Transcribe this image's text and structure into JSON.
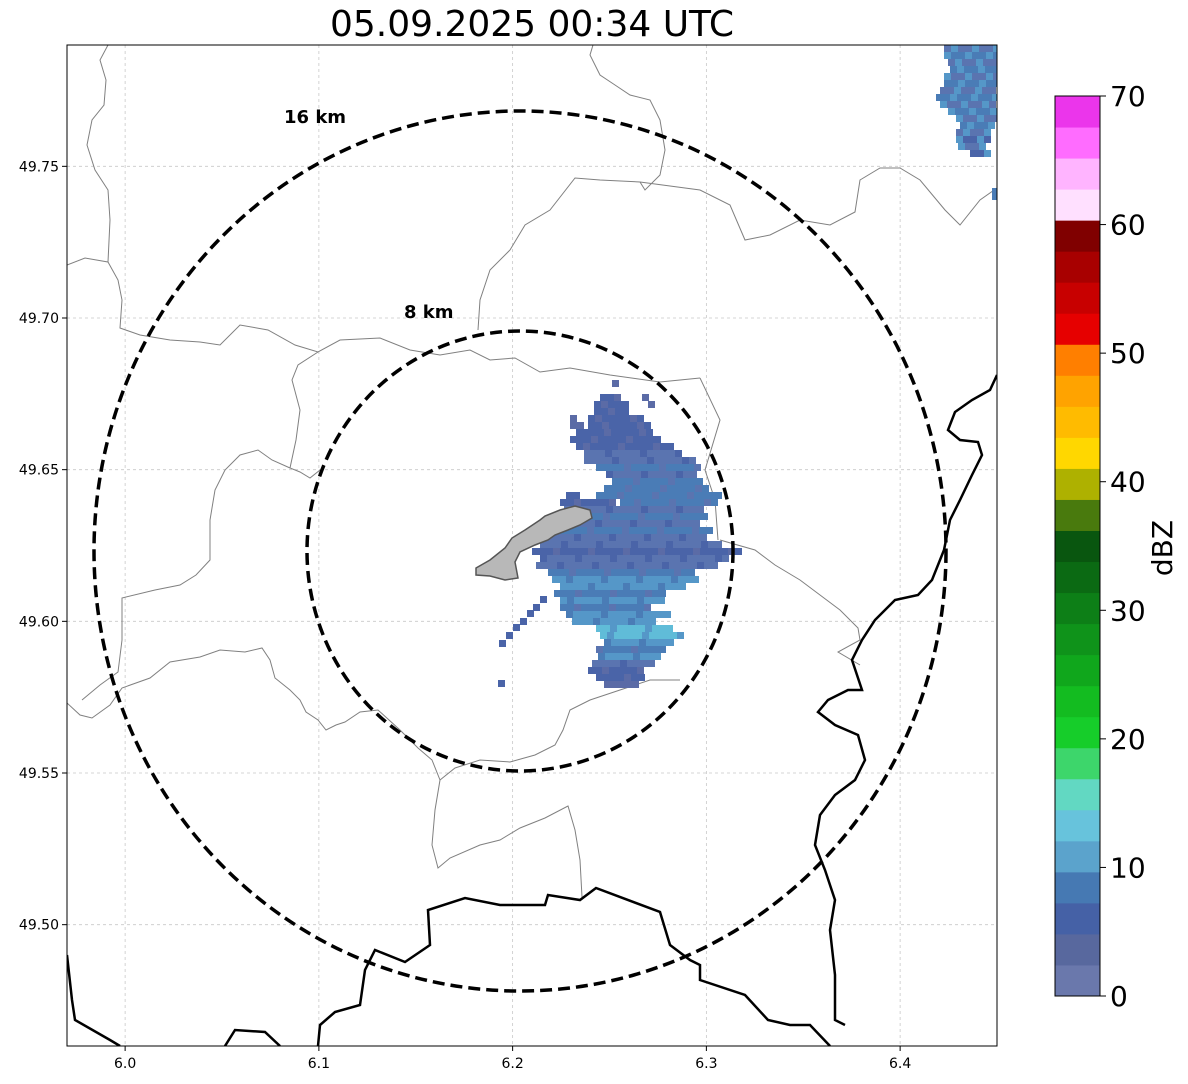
{
  "title": "05.09.2025 00:34 UTC",
  "map": {
    "lon_range": [
      5.97,
      6.45
    ],
    "lat_range": [
      49.46,
      49.79
    ],
    "lon_ticks": [
      "6.0",
      "6.1",
      "6.2",
      "6.3",
      "6.4"
    ],
    "lat_ticks": [
      "49.50",
      "49.55",
      "49.60",
      "49.65",
      "49.70",
      "49.75"
    ],
    "grid": true,
    "rings": [
      {
        "label": "8 km",
        "radius_km": 8
      },
      {
        "label": "16 km",
        "radius_km": 16
      }
    ],
    "ring_center": {
      "lon": 6.204,
      "lat": 49.623
    }
  },
  "colorbar": {
    "label": "dBZ",
    "ticks": [
      "0",
      "10",
      "20",
      "30",
      "40",
      "50",
      "60",
      "70"
    ],
    "range": [
      0,
      70
    ],
    "colors": [
      "#6a78ac",
      "#58689e",
      "#4561a6",
      "#4679b3",
      "#5ba3cc",
      "#67c3dc",
      "#62d8c2",
      "#3dd66b",
      "#16cd2a",
      "#13bc20",
      "#10a71c",
      "#0f931a",
      "#0d7f17",
      "#0b6a13",
      "#09560f",
      "#497a0d",
      "#aeb100",
      "#ffd700",
      "#ffbb00",
      "#ffa300",
      "#ff7f00",
      "#e60000",
      "#c80000",
      "#a80000",
      "#800000",
      "#ffe0ff",
      "#ffb4ff",
      "#ff6cff",
      "#eb35eb"
    ]
  },
  "colors": {
    "ring": "#000000",
    "border": "#000000",
    "admin": "#808080",
    "grid": "#c8c8c8"
  }
}
